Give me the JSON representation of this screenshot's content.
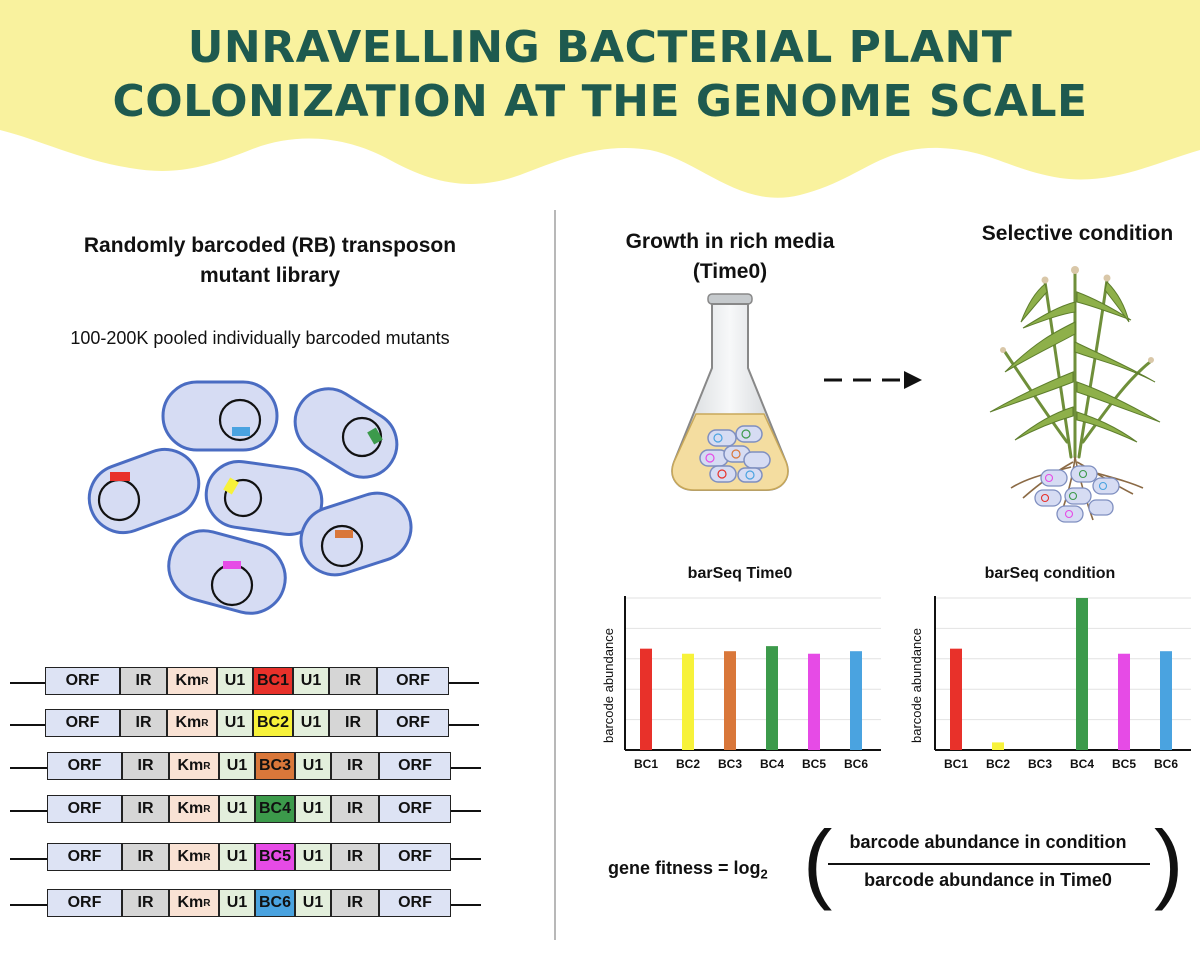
{
  "title": {
    "line1": "UNRAVELLING BACTERIAL PLANT",
    "line2": "COLONIZATION AT THE GENOME SCALE"
  },
  "left": {
    "heading_line1": "Randomly barcoded (RB) transposon",
    "heading_line2": "mutant library",
    "subheading": "100-200K pooled individually barcoded mutants",
    "constructs": [
      {
        "segments": [
          "ORF",
          "IR",
          "KmR",
          "U1",
          "BC1",
          "U1",
          "IR",
          "ORF"
        ],
        "barcode_color": "#e8312a"
      },
      {
        "segments": [
          "ORF",
          "IR",
          "KmR",
          "U1",
          "BC2",
          "U1",
          "IR",
          "ORF"
        ],
        "barcode_color": "#f7f23a"
      },
      {
        "segments": [
          "ORF",
          "IR",
          "KmR",
          "U1",
          "BC3",
          "U1",
          "IR",
          "ORF"
        ],
        "barcode_color": "#d9773a"
      },
      {
        "segments": [
          "ORF",
          "IR",
          "KmR",
          "U1",
          "BC4",
          "U1",
          "IR",
          "ORF"
        ],
        "barcode_color": "#3c9a4b"
      },
      {
        "segments": [
          "ORF",
          "IR",
          "KmR",
          "U1",
          "BC5",
          "U1",
          "IR",
          "ORF"
        ],
        "barcode_color": "#e64be6"
      },
      {
        "segments": [
          "ORF",
          "IR",
          "KmR",
          "U1",
          "BC6",
          "U1",
          "IR",
          "ORF"
        ],
        "barcode_color": "#4aa3e0"
      }
    ],
    "segment_colors": {
      "ORF": "#dde3f4",
      "IR": "#d6d6d6",
      "KmR": "#f9e2d4",
      "U1": "#e3efdc"
    }
  },
  "right": {
    "growth_line1": "Growth in rich media",
    "growth_line2": "(Time0)",
    "selective": "Selective condition"
  },
  "chart_data": [
    {
      "type": "bar",
      "title": "barSeq Time0",
      "ylabel": "barcode abundance",
      "categories": [
        "BC1",
        "BC2",
        "BC3",
        "BC4",
        "BC5",
        "BC6"
      ],
      "values": [
        4.0,
        3.8,
        3.9,
        4.1,
        3.8,
        3.9
      ],
      "ylim": [
        0,
        6
      ],
      "colors": [
        "#e8312a",
        "#f7f23a",
        "#d9773a",
        "#3c9a4b",
        "#e64be6",
        "#4aa3e0"
      ]
    },
    {
      "type": "bar",
      "title": "barSeq condition",
      "ylabel": "barcode abundance",
      "categories": [
        "BC1",
        "BC2",
        "BC3",
        "BC4",
        "BC5",
        "BC6"
      ],
      "values": [
        4.0,
        0.3,
        0,
        6.0,
        3.8,
        3.9
      ],
      "ylim": [
        0,
        6
      ],
      "colors": [
        "#e8312a",
        "#f7f23a",
        "#d9773a",
        "#3c9a4b",
        "#e64be6",
        "#4aa3e0"
      ]
    }
  ],
  "formula": {
    "lhs": "gene fitness = log",
    "sub": "2",
    "numerator": "barcode abundance in condition",
    "denominator": "barcode abundance in Time0"
  }
}
